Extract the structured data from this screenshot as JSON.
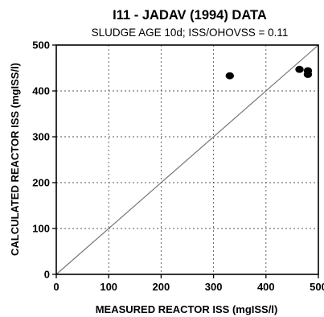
{
  "chart_data": {
    "type": "scatter",
    "title": "I11 - JADAV (1994)  DATA",
    "subtitle": "SLUDGE AGE 10d; ISS/OHOVSS = 0.11",
    "xlabel": "MEASURED REACTOR ISS (mgISS/l)",
    "ylabel": "CALCULATED REACTOR ISS (mgISS/l)",
    "xlim": [
      0,
      500
    ],
    "ylim": [
      0,
      500
    ],
    "xticks": [
      "0",
      "100",
      "200",
      "300",
      "400",
      "500"
    ],
    "yticks": [
      "0",
      "100",
      "200",
      "300",
      "400",
      "500"
    ],
    "grid": true,
    "reference_line": "y = x",
    "series": [
      {
        "points": [
          {
            "x": 331,
            "y": 433
          },
          {
            "x": 464,
            "y": 447
          },
          {
            "x": 480,
            "y": 444
          },
          {
            "x": 480,
            "y": 436
          }
        ]
      }
    ]
  }
}
